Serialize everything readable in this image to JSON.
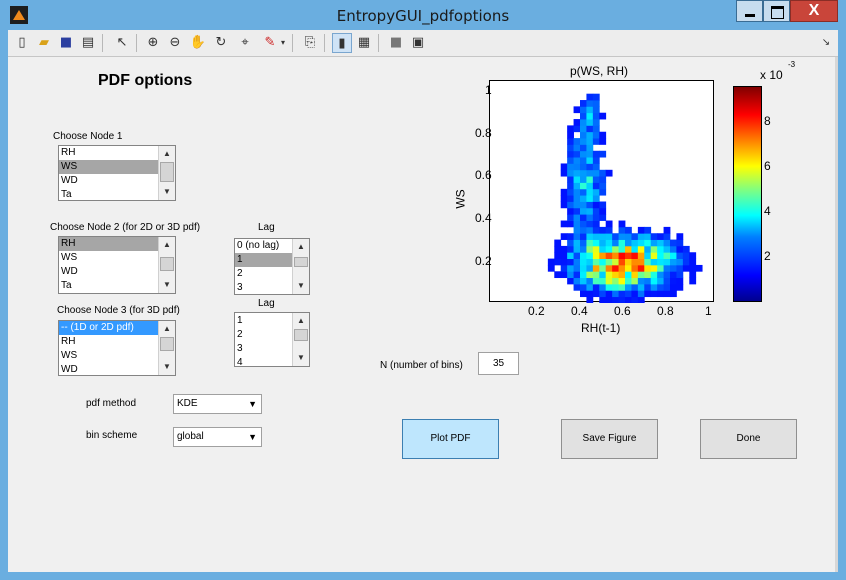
{
  "window": {
    "title": "EntropyGUI_pdfoptions",
    "close_glyph": "X"
  },
  "toolbar": {
    "icons": [
      "new-figure-icon",
      "open-file-icon",
      "save-icon",
      "print-icon",
      "pointer-icon",
      "zoom-in-icon",
      "zoom-out-icon",
      "pan-icon",
      "rotate-3d-icon",
      "data-cursor-icon",
      "brush-icon",
      "link-plot-icon",
      "colorbar-icon",
      "legend-icon",
      "hide-plot-tools-icon",
      "show-plot-tools-icon",
      "dock-icon"
    ]
  },
  "heading": "PDF options",
  "node1": {
    "label": "Choose Node 1",
    "items": [
      "RH",
      "WS",
      "WD",
      "Ta"
    ],
    "selected": 1
  },
  "node2": {
    "label": "Choose Node  2 (for 2D or 3D pdf)",
    "items": [
      "RH",
      "WS",
      "WD",
      "Ta"
    ],
    "selected": 0
  },
  "node3": {
    "label": "Choose Node 3 (for 3D pdf)",
    "items": [
      "-- (1D or 2D pdf)",
      "RH",
      "WS",
      "WD"
    ],
    "selected": 0
  },
  "lag1": {
    "label": "Lag",
    "items": [
      "0 (no lag)",
      "1",
      "2",
      "3"
    ],
    "selected": 1
  },
  "lag2": {
    "label": "Lag",
    "items": [
      "1",
      "2",
      "3",
      "4"
    ],
    "selected": -1
  },
  "pdf_method": {
    "label": "pdf method",
    "value": "KDE"
  },
  "bin_scheme": {
    "label": "bin scheme",
    "value": "global"
  },
  "nbins": {
    "label": "N (number of bins)",
    "value": "35"
  },
  "buttons": {
    "plot": "Plot PDF",
    "save": "Save Figure",
    "done": "Done"
  },
  "chart_data": {
    "type": "heatmap",
    "title": "p(WS, RH)",
    "xlabel": "RH(t-1)",
    "ylabel": "WS",
    "xticks": [
      "0.2",
      "0.4",
      "0.6",
      "0.8",
      "1"
    ],
    "yticks": [
      "0.2",
      "0.4",
      "0.6",
      "0.8",
      "1"
    ],
    "xlim": [
      0,
      1
    ],
    "ylim": [
      0,
      1
    ],
    "bins": 35,
    "colorbar": {
      "label": "x 10",
      "exponent": "-3",
      "ticks": [
        "2",
        "4",
        "6",
        "8"
      ],
      "min": 0,
      "max": 0.0095
    },
    "colormap": "jet",
    "description_of_density": "Highest density between RH 0.3-0.9 and WS 0.1-0.3; sparse tail upward to WS~0.95 near RH 0.35"
  }
}
